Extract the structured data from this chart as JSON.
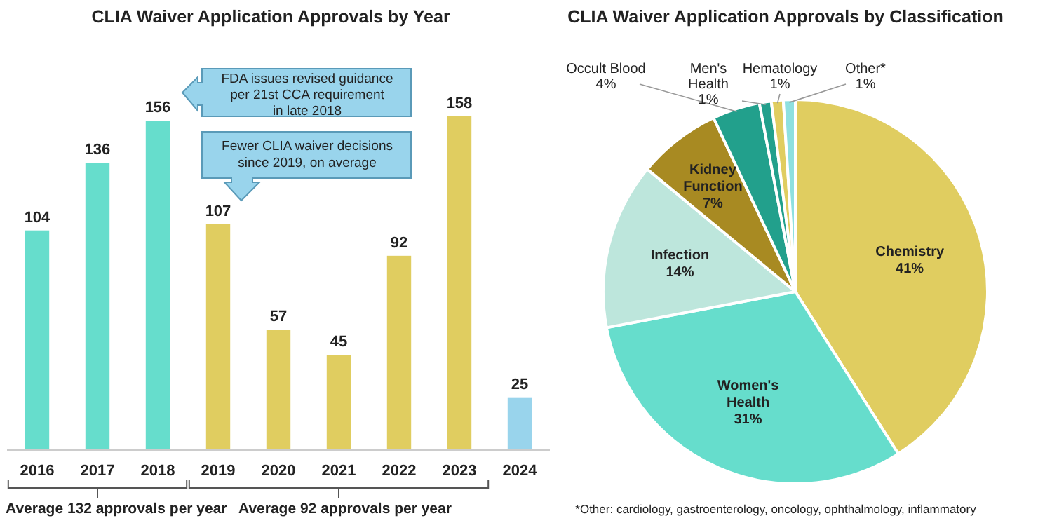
{
  "chart_data": [
    {
      "type": "bar",
      "title": "CLIA Waiver Application Approvals by Year",
      "categories": [
        "2016",
        "2017",
        "2018",
        "2019",
        "2020",
        "2021",
        "2022",
        "2023",
        "2024"
      ],
      "values": [
        104,
        136,
        156,
        107,
        57,
        45,
        92,
        158,
        25
      ],
      "colors": [
        "#66ddcc",
        "#66ddcc",
        "#66ddcc",
        "#e0cd60",
        "#e0cd60",
        "#e0cd60",
        "#e0cd60",
        "#e0cd60",
        "#99d4ec"
      ],
      "data_labels": true,
      "annotations": [
        "FDA issues revised guidance\nper 21st CCA requirement\nin late 2018",
        "Fewer CLIA waiver decisions\nsince 2019, on average",
        "Average 132 approvals per year",
        "Average 92 approvals per year"
      ]
    },
    {
      "type": "pie",
      "title": "CLIA Waiver Application Approvals by Classification",
      "categories": [
        "Chemistry",
        "Women's\nHealth",
        "Infection",
        "Kidney\nFunction",
        "Occult Blood",
        "Men's\nHealth",
        "Hematology",
        "Other*"
      ],
      "values": [
        41,
        31,
        14,
        7,
        4,
        1,
        1,
        1
      ],
      "value_labels": [
        "41%",
        "31%",
        "14%",
        "7%",
        "4%",
        "1%",
        "1%",
        "1%"
      ],
      "colors": [
        "#e0cd60",
        "#66ddcc",
        "#bde6dc",
        "#a88a22",
        "#22a08c",
        "#22a08c",
        "#e0cd60",
        "#8ee0e0"
      ],
      "annotations": [
        "*Other: cardiology, gastroenterology, oncology, ophthalmology, inflammatory"
      ]
    }
  ]
}
